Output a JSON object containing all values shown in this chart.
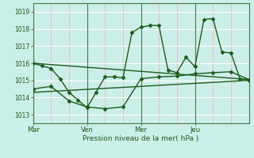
{
  "xlabel": "Pression niveau de la mer( hPa )",
  "bg_color": "#cceee8",
  "line_color": "#1a5c1a",
  "ylim": [
    1012.5,
    1019.5
  ],
  "yticks": [
    1013,
    1014,
    1015,
    1016,
    1017,
    1018,
    1019
  ],
  "day_labels": [
    "Mar",
    "Ven",
    "Mer",
    "Jeu"
  ],
  "day_positions": [
    0,
    3,
    6,
    9
  ],
  "hgrid_color": "#ffffff",
  "minor_vline_color": "#f5aaaa",
  "vline_color": "#4a7a4a",
  "series": [
    {
      "x": [
        0,
        0.5,
        1.0,
        1.5,
        2.0,
        2.5,
        3.0,
        3.5,
        4.0,
        4.5,
        5.0,
        5.5,
        6.0,
        6.5,
        7.0,
        7.5,
        8.0,
        8.5,
        9.0,
        9.5,
        10.0,
        10.5,
        11.0,
        11.5,
        12.0
      ],
      "y": [
        1016.0,
        1015.85,
        1015.7,
        1015.1,
        1014.3,
        1013.85,
        1013.4,
        1014.3,
        1015.2,
        1015.2,
        1015.15,
        1017.8,
        1018.1,
        1018.2,
        1018.2,
        1015.6,
        1015.45,
        1016.35,
        1015.8,
        1018.55,
        1018.6,
        1016.65,
        1016.6,
        1015.1,
        1015.0
      ],
      "marker": "D",
      "markersize": 2.5,
      "linewidth": 1.0
    },
    {
      "x": [
        0,
        1,
        2,
        3,
        4,
        5,
        6,
        7,
        8,
        9,
        10,
        11,
        12
      ],
      "y": [
        1014.5,
        1014.65,
        1013.8,
        1013.45,
        1013.35,
        1013.45,
        1015.1,
        1015.2,
        1015.25,
        1015.38,
        1015.45,
        1015.5,
        1015.05
      ],
      "marker": "D",
      "markersize": 2.5,
      "linewidth": 1.0
    },
    {
      "x": [
        0,
        12
      ],
      "y": [
        1016.0,
        1015.05
      ],
      "marker": null,
      "markersize": 0,
      "linewidth": 1.0
    },
    {
      "x": [
        0,
        12
      ],
      "y": [
        1014.3,
        1015.0
      ],
      "marker": null,
      "markersize": 0,
      "linewidth": 1.0
    }
  ]
}
